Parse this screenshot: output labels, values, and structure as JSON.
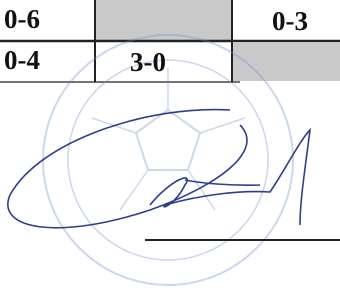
{
  "table": {
    "rows": [
      [
        "0-6",
        "0-3"
      ],
      [
        "0-4",
        "3-0"
      ]
    ]
  }
}
